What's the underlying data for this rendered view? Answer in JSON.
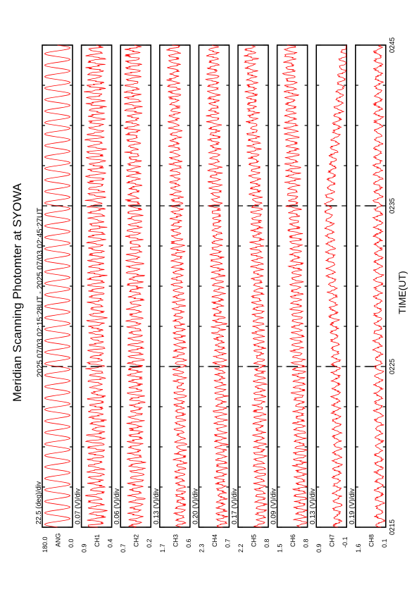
{
  "chart_data": {
    "type": "line",
    "title": "Meridian Scanning Photomter at SYOWA",
    "subtitle": "2025 07/03 02:15:28UT - 2025 07/03 02:45:27UT",
    "xlabel": "TIME(UT)",
    "x_tick_labels": [
      "0215",
      "0225",
      "0235",
      "0245"
    ],
    "x_range_minutes": [
      0,
      30
    ],
    "series_color": "#ff0000",
    "panels": [
      {
        "name": "ANG",
        "div_label": "22.5 (deg)/div",
        "y_top": "180.0",
        "y_bottom": "0.0",
        "trend": [
          0.5,
          0.5,
          0.5,
          0.5
        ],
        "amp": 0.42,
        "noise": 0.0,
        "cycles": 42
      },
      {
        "name": "CH1",
        "div_label": "0.07 (V)/div",
        "y_top": "0.9",
        "y_bottom": "0.4",
        "trend": [
          0.5,
          0.5,
          0.52,
          0.55
        ],
        "amp": 0.3,
        "noise": 0.1,
        "cycles": 80
      },
      {
        "name": "CH2",
        "div_label": "0.06 (V)/div",
        "y_top": "0.7",
        "y_bottom": "0.2",
        "trend": [
          0.48,
          0.5,
          0.55,
          0.6
        ],
        "amp": 0.25,
        "noise": 0.1,
        "cycles": 80
      },
      {
        "name": "CH3",
        "div_label": "0.13 (V)/div",
        "y_top": "1.7",
        "y_bottom": "0.6",
        "trend": [
          0.3,
          0.35,
          0.45,
          0.55
        ],
        "amp": 0.2,
        "noise": 0.08,
        "cycles": 80
      },
      {
        "name": "CH4",
        "div_label": "0.20 (V)/div",
        "y_top": "2.3",
        "y_bottom": "0.7",
        "trend": [
          0.25,
          0.3,
          0.45,
          0.55
        ],
        "amp": 0.2,
        "noise": 0.08,
        "cycles": 80
      },
      {
        "name": "CH5",
        "div_label": "0.17 (V)/div",
        "y_top": "2.2",
        "y_bottom": "0.8",
        "trend": [
          0.25,
          0.3,
          0.4,
          0.6
        ],
        "amp": 0.2,
        "noise": 0.08,
        "cycles": 80
      },
      {
        "name": "CH6",
        "div_label": "0.09 (V)/div",
        "y_top": "1.5",
        "y_bottom": "0.8",
        "trend": [
          0.2,
          0.3,
          0.45,
          0.6
        ],
        "amp": 0.22,
        "noise": 0.08,
        "cycles": 80
      },
      {
        "name": "CH7",
        "div_label": "0.13 (V)/div",
        "y_top": "0.9",
        "y_bottom": "-0.1",
        "trend": [
          0.3,
          0.35,
          0.6,
          0.05
        ],
        "amp": 0.15,
        "noise": 0.05,
        "cycles": 60
      },
      {
        "name": "CH8",
        "div_label": "0.19 (V)/div",
        "y_top": "1.6",
        "y_bottom": "0.1",
        "trend": [
          0.2,
          0.25,
          0.25,
          0.25
        ],
        "amp": 0.15,
        "noise": 0.05,
        "cycles": 55
      }
    ]
  }
}
